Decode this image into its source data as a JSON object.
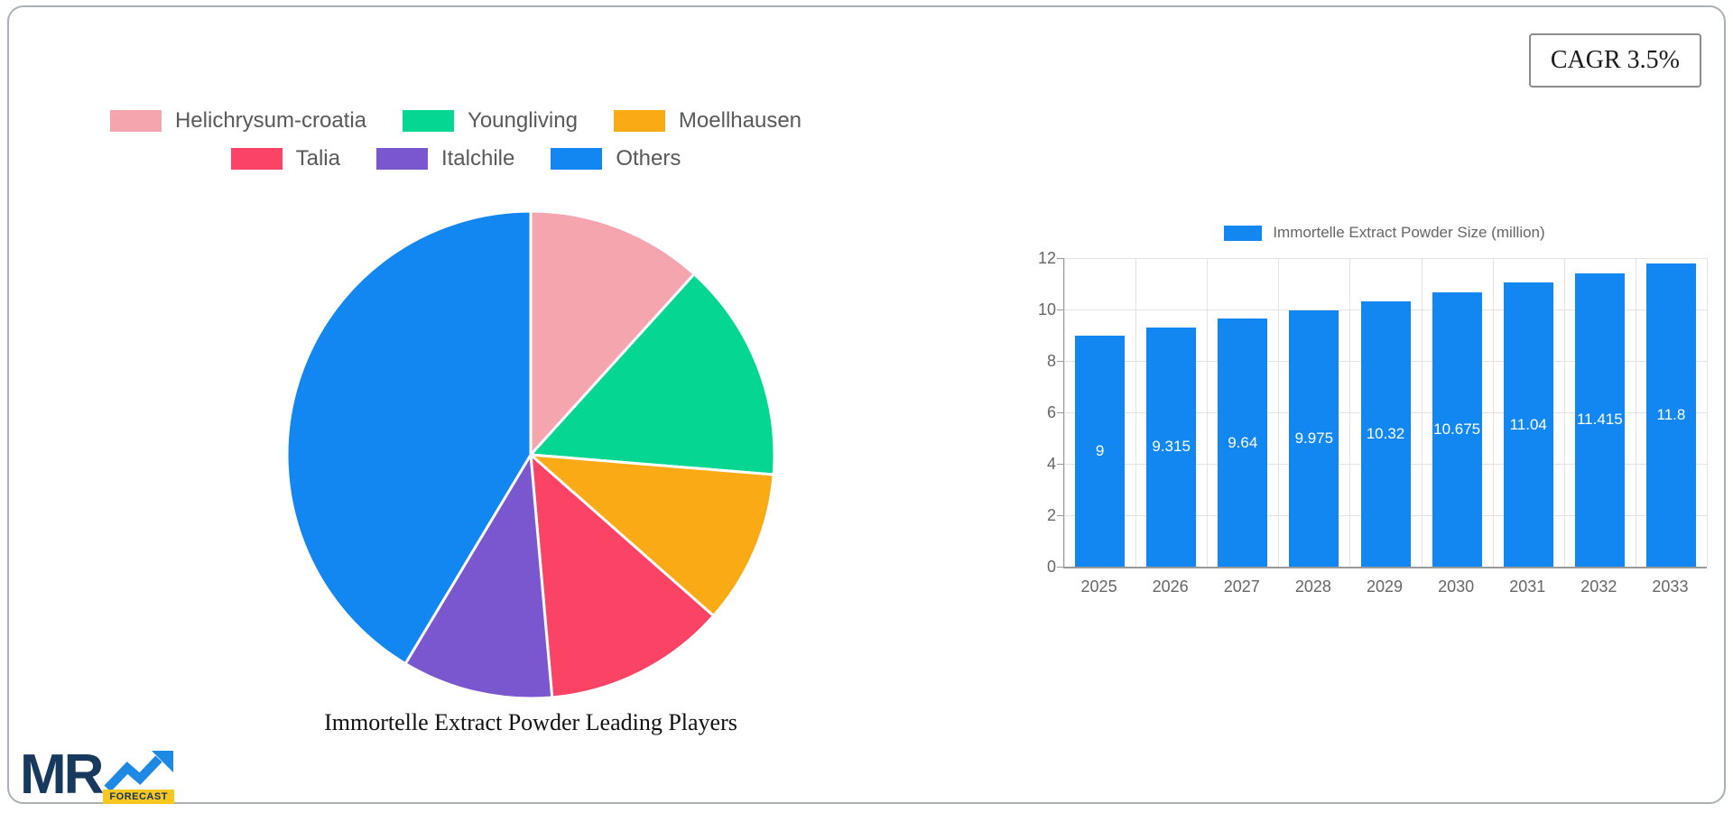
{
  "cagr_badge": "CAGR 3.5%",
  "logo": {
    "text": "MR",
    "badge": "FORECAST"
  },
  "chart_data": [
    {
      "type": "pie",
      "title": "Immortelle Extract Powder Leading Players",
      "categories": [
        "Helichrysum-croatia",
        "Youngliving",
        "Moellhausen",
        "Talia",
        "Italchile",
        "Others"
      ],
      "values": [
        11.7,
        14.6,
        10.2,
        12.1,
        10.0,
        41.4
      ],
      "colors": [
        "#f5a5ad",
        "#05d792",
        "#faaa14",
        "#fb4365",
        "#7b57cf",
        "#1287f2"
      ],
      "legend_position": "top",
      "legend_rows": [
        [
          0,
          1,
          2
        ],
        [
          3,
          4,
          5
        ]
      ],
      "start_angle_deg": 0,
      "direction": "clockwise"
    },
    {
      "type": "bar",
      "title": "",
      "legend": "Immortelle Extract Powder Size (million)",
      "legend_position": "top",
      "categories": [
        "2025",
        "2026",
        "2027",
        "2028",
        "2029",
        "2030",
        "2031",
        "2032",
        "2033"
      ],
      "values": [
        9,
        9.315,
        9.64,
        9.975,
        10.32,
        10.675,
        11.04,
        11.415,
        11.8
      ],
      "value_labels": [
        "9",
        "9.315",
        "9.64",
        "9.975",
        "10.32",
        "10.675",
        "11.04",
        "11.415",
        "11.8"
      ],
      "bar_color": "#1287f2",
      "xlabel": "",
      "ylabel": "",
      "ylim": [
        0,
        12
      ],
      "yticks": [
        0,
        2,
        4,
        6,
        8,
        10,
        12
      ],
      "grid": true
    }
  ]
}
